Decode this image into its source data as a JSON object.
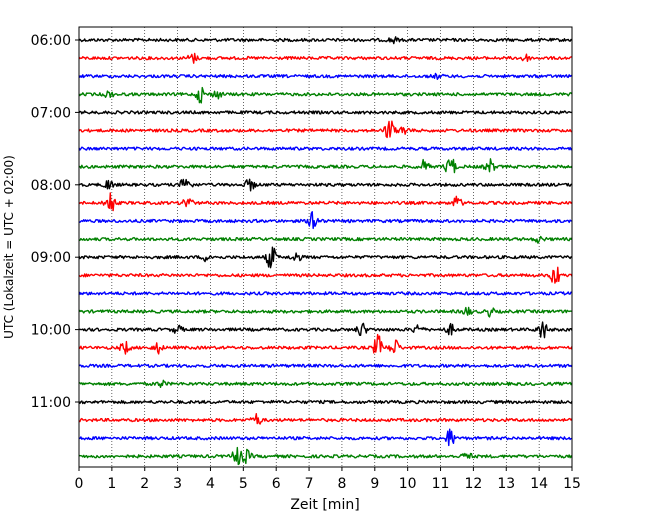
{
  "chart_data": {
    "type": "line",
    "title": "",
    "xlabel": "Zeit  [min]",
    "ylabel": "UTC (Lokalzeit = UTC + 02:00)",
    "xlim": [
      0,
      15
    ],
    "x_ticks": [
      0,
      1,
      2,
      3,
      4,
      5,
      6,
      7,
      8,
      9,
      10,
      11,
      12,
      13,
      14,
      15
    ],
    "x_tick_labels": [
      "0",
      "1",
      "2",
      "3",
      "4",
      "5",
      "6",
      "7",
      "8",
      "9",
      "10",
      "11",
      "12",
      "13",
      "14",
      "15"
    ],
    "y_tick_labels": [
      "06:00",
      "07:00",
      "08:00",
      "09:00",
      "10:00",
      "11:00"
    ],
    "y_tick_rows": [
      0,
      4,
      8,
      12,
      16,
      20
    ],
    "minutes_per_row": 15,
    "grid": {
      "x": true,
      "y": false,
      "style": "dotted"
    },
    "series_colors": [
      "#000000",
      "#ff0000",
      "#0000ff",
      "#008000"
    ],
    "rows": [
      {
        "start": "06:00",
        "events": [
          [
            9.55,
            3
          ]
        ]
      },
      {
        "start": "06:15",
        "events": [
          [
            3.45,
            5
          ],
          [
            13.55,
            4
          ]
        ]
      },
      {
        "start": "06:30",
        "events": [
          [
            10.9,
            2
          ]
        ]
      },
      {
        "start": "06:45",
        "events": [
          [
            0.9,
            3
          ],
          [
            3.7,
            8
          ],
          [
            4.2,
            4
          ]
        ]
      },
      {
        "start": "07:00",
        "events": []
      },
      {
        "start": "07:15",
        "events": [
          [
            9.45,
            12
          ],
          [
            9.9,
            5
          ]
        ]
      },
      {
        "start": "07:30",
        "events": []
      },
      {
        "start": "07:45",
        "events": [
          [
            10.5,
            6
          ],
          [
            11.3,
            12
          ],
          [
            12.5,
            7
          ]
        ]
      },
      {
        "start": "08:00",
        "events": [
          [
            0.9,
            5
          ],
          [
            3.25,
            11
          ],
          [
            5.2,
            6
          ]
        ]
      },
      {
        "start": "08:15",
        "events": [
          [
            0.95,
            12
          ],
          [
            3.3,
            7
          ],
          [
            11.5,
            6
          ]
        ]
      },
      {
        "start": "08:30",
        "events": [
          [
            7.15,
            13
          ]
        ]
      },
      {
        "start": "08:45",
        "events": [
          [
            14.0,
            3
          ]
        ]
      },
      {
        "start": "09:00",
        "events": [
          [
            3.9,
            4
          ],
          [
            5.85,
            13
          ],
          [
            6.6,
            5
          ]
        ]
      },
      {
        "start": "09:15",
        "events": [
          [
            14.5,
            11
          ]
        ]
      },
      {
        "start": "09:30",
        "events": []
      },
      {
        "start": "09:45",
        "events": [
          [
            11.8,
            4
          ],
          [
            12.5,
            4
          ]
        ]
      },
      {
        "start": "10:00",
        "events": [
          [
            3.0,
            4
          ],
          [
            8.6,
            7
          ],
          [
            10.3,
            5
          ],
          [
            11.3,
            5
          ],
          [
            14.1,
            10
          ]
        ]
      },
      {
        "start": "10:15",
        "events": [
          [
            1.4,
            6
          ],
          [
            2.4,
            5
          ],
          [
            9.1,
            12
          ],
          [
            9.6,
            9
          ]
        ]
      },
      {
        "start": "10:30",
        "events": []
      },
      {
        "start": "10:45",
        "events": [
          [
            2.5,
            3
          ]
        ]
      },
      {
        "start": "11:00",
        "events": []
      },
      {
        "start": "11:15",
        "events": [
          [
            5.4,
            6
          ]
        ]
      },
      {
        "start": "11:30",
        "events": [
          [
            11.3,
            9
          ]
        ]
      },
      {
        "start": "11:45",
        "events": [
          [
            4.8,
            10
          ],
          [
            5.1,
            6
          ],
          [
            11.8,
            4
          ]
        ]
      }
    ]
  }
}
